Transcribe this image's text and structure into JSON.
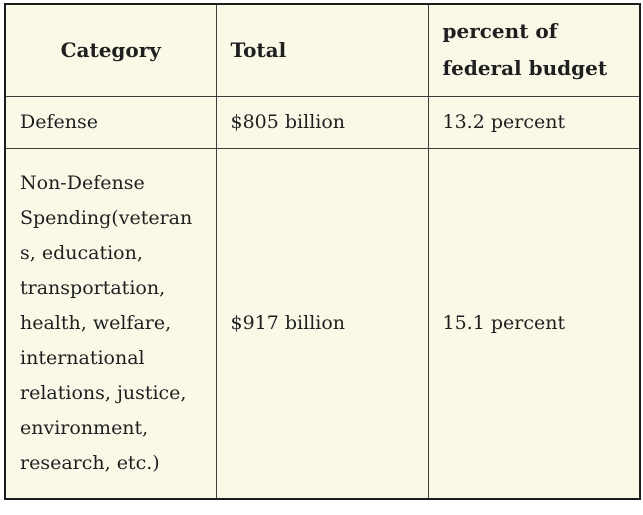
{
  "chart_data": {
    "type": "table",
    "title": "",
    "columns": [
      "Category",
      "Total",
      "percent of federal budget"
    ],
    "rows": [
      [
        "Defense",
        "$805 billion",
        "13.2 percent"
      ],
      [
        "Non-Defense Spending(veterans, education, transportation, health, welfare, international relations, justice, environment, research, etc.)",
        "$917 billion",
        "15.1 percent"
      ]
    ],
    "numeric_values": {
      "defense_total_billion_usd": 805,
      "defense_percent_of_federal_budget": 13.2,
      "non_defense_total_billion_usd": 917,
      "non_defense_percent_of_federal_budget": 15.1
    }
  },
  "colors": {
    "page_background": "#ffffff",
    "cell_background": "#faf9e8",
    "inner_border": "#3d3d3d",
    "outer_border": "#1c1c1c",
    "text": "#1f1f1f"
  }
}
